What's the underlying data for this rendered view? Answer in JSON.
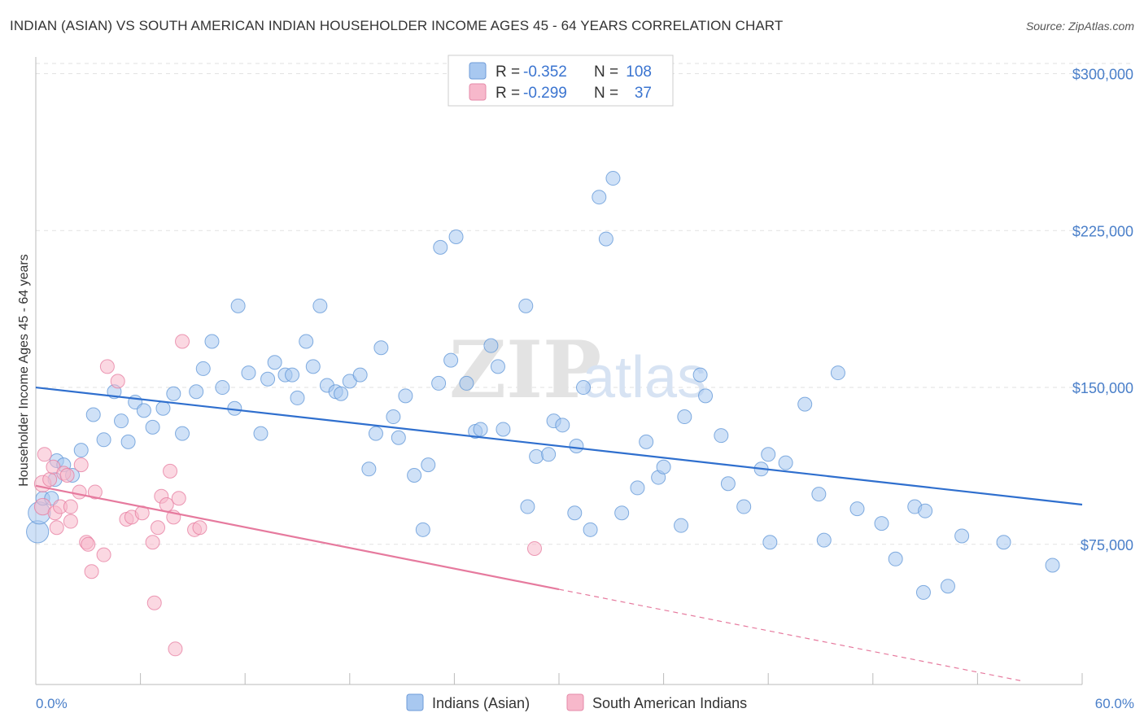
{
  "header": {
    "title": "INDIAN (ASIAN) VS SOUTH AMERICAN INDIAN HOUSEHOLDER INCOME AGES 45 - 64 YEARS CORRELATION CHART",
    "source": "Source: ZipAtlas.com"
  },
  "watermark": {
    "zip": "ZIP",
    "atlas": "atlas"
  },
  "legend": {
    "r_label": "R =",
    "n_label": "N =",
    "items": [
      {
        "r": "-0.352",
        "n": "108",
        "color": "#a8c8f0"
      },
      {
        "r": "-0.299",
        "n": "37",
        "color": "#f7b8cb"
      }
    ]
  },
  "bottom_legend": [
    {
      "label": "Indians (Asian)",
      "color": "#a8c8f0"
    },
    {
      "label": "South American Indians",
      "color": "#f7b8cb"
    }
  ],
  "chart_data": {
    "type": "scatter",
    "title": "INDIAN (ASIAN) VS SOUTH AMERICAN INDIAN HOUSEHOLDER INCOME AGES 45 - 64 YEARS CORRELATION CHART",
    "xlabel": "",
    "ylabel": "Householder Income Ages 45 - 64 years",
    "xlim": [
      0,
      60
    ],
    "ylim": [
      8000,
      308000
    ],
    "x_tick_labels": [
      "0.0%",
      "60.0%"
    ],
    "y_ticks": [
      75000,
      150000,
      225000,
      300000
    ],
    "y_tick_labels": [
      "$75,000",
      "$150,000",
      "$225,000",
      "$300,000"
    ],
    "grid": true,
    "series": [
      {
        "name": "Indians (Asian)",
        "color": "#5b93d6",
        "fill": "#a8c8f0",
        "r": -0.352,
        "n": 108,
        "trend": {
          "x": [
            0,
            60
          ],
          "y": [
            150000,
            94000
          ],
          "dashed_from": null
        },
        "points": [
          [
            0.1,
            81000,
            1.6
          ],
          [
            0.2,
            90000,
            1.6
          ],
          [
            0.4,
            97000,
            1.0
          ],
          [
            0.9,
            97000,
            1.0
          ],
          [
            1.1,
            106000,
            1.0
          ],
          [
            1.2,
            115000,
            1.0
          ],
          [
            1.6,
            113000,
            1.0
          ],
          [
            2.1,
            108000,
            1.0
          ],
          [
            2.6,
            120000,
            1.0
          ],
          [
            3.3,
            137000,
            1.0
          ],
          [
            3.9,
            125000,
            1.0
          ],
          [
            4.5,
            148000,
            1.0
          ],
          [
            4.9,
            134000,
            1.0
          ],
          [
            5.3,
            124000,
            1.0
          ],
          [
            5.7,
            143000,
            1.0
          ],
          [
            6.2,
            139000,
            1.0
          ],
          [
            6.7,
            131000,
            1.0
          ],
          [
            7.3,
            140000,
            1.0
          ],
          [
            7.9,
            147000,
            1.0
          ],
          [
            8.4,
            128000,
            1.0
          ],
          [
            9.2,
            148000,
            1.0
          ],
          [
            9.6,
            159000,
            1.0
          ],
          [
            10.1,
            172000,
            1.0
          ],
          [
            10.7,
            150000,
            1.0
          ],
          [
            11.4,
            140000,
            1.0
          ],
          [
            11.6,
            189000,
            1.0
          ],
          [
            12.2,
            157000,
            1.0
          ],
          [
            12.9,
            128000,
            1.0
          ],
          [
            13.3,
            154000,
            1.0
          ],
          [
            13.7,
            162000,
            1.0
          ],
          [
            14.3,
            156000,
            1.0
          ],
          [
            14.7,
            156000,
            1.0
          ],
          [
            15.0,
            145000,
            1.0
          ],
          [
            15.5,
            172000,
            1.0
          ],
          [
            15.9,
            160000,
            1.0
          ],
          [
            16.3,
            189000,
            1.0
          ],
          [
            16.7,
            151000,
            1.0
          ],
          [
            17.2,
            148000,
            1.0
          ],
          [
            17.5,
            147000,
            1.0
          ],
          [
            18.0,
            153000,
            1.0
          ],
          [
            18.6,
            156000,
            1.0
          ],
          [
            19.1,
            111000,
            1.0
          ],
          [
            19.5,
            128000,
            1.0
          ],
          [
            19.8,
            169000,
            1.0
          ],
          [
            20.5,
            136000,
            1.0
          ],
          [
            20.8,
            126000,
            1.0
          ],
          [
            21.2,
            146000,
            1.0
          ],
          [
            21.7,
            108000,
            1.0
          ],
          [
            22.2,
            82000,
            1.0
          ],
          [
            22.5,
            113000,
            1.0
          ],
          [
            23.1,
            152000,
            1.0
          ],
          [
            23.2,
            217000,
            1.0
          ],
          [
            23.8,
            163000,
            1.0
          ],
          [
            24.1,
            222000,
            1.0
          ],
          [
            24.7,
            152000,
            1.0
          ],
          [
            25.2,
            129000,
            1.0
          ],
          [
            25.5,
            130000,
            1.0
          ],
          [
            26.1,
            170000,
            1.0
          ],
          [
            26.5,
            160000,
            1.0
          ],
          [
            26.8,
            130000,
            1.0
          ],
          [
            28.1,
            189000,
            1.0
          ],
          [
            28.2,
            93000,
            1.0
          ],
          [
            28.7,
            117000,
            1.0
          ],
          [
            29.4,
            118000,
            1.0
          ],
          [
            29.7,
            134000,
            1.0
          ],
          [
            30.2,
            132000,
            1.0
          ],
          [
            30.9,
            90000,
            1.0
          ],
          [
            31.0,
            122000,
            1.0
          ],
          [
            31.4,
            150000,
            1.0
          ],
          [
            31.8,
            82000,
            1.0
          ],
          [
            32.3,
            241000,
            1.0
          ],
          [
            32.7,
            221000,
            1.0
          ],
          [
            33.1,
            250000,
            1.0
          ],
          [
            33.6,
            90000,
            1.0
          ],
          [
            34.5,
            102000,
            1.0
          ],
          [
            35.0,
            124000,
            1.0
          ],
          [
            35.7,
            107000,
            1.0
          ],
          [
            36.0,
            112000,
            1.0
          ],
          [
            37.0,
            84000,
            1.0
          ],
          [
            37.2,
            136000,
            1.0
          ],
          [
            38.1,
            156000,
            1.0
          ],
          [
            38.4,
            146000,
            1.0
          ],
          [
            39.3,
            127000,
            1.0
          ],
          [
            39.7,
            104000,
            1.0
          ],
          [
            40.6,
            93000,
            1.0
          ],
          [
            41.6,
            111000,
            1.0
          ],
          [
            42.0,
            118000,
            1.0
          ],
          [
            42.1,
            76000,
            1.0
          ],
          [
            43.0,
            114000,
            1.0
          ],
          [
            44.1,
            142000,
            1.0
          ],
          [
            44.9,
            99000,
            1.0
          ],
          [
            45.2,
            77000,
            1.0
          ],
          [
            46.0,
            157000,
            1.0
          ],
          [
            47.1,
            92000,
            1.0
          ],
          [
            48.5,
            85000,
            1.0
          ],
          [
            49.3,
            68000,
            1.0
          ],
          [
            50.4,
            93000,
            1.0
          ],
          [
            50.9,
            52000,
            1.0
          ],
          [
            51.0,
            91000,
            1.0
          ],
          [
            52.3,
            55000,
            1.0
          ],
          [
            53.1,
            79000,
            1.0
          ],
          [
            55.5,
            76000,
            1.0
          ],
          [
            58.3,
            65000,
            1.0
          ]
        ]
      },
      {
        "name": "South American Indians",
        "color": "#e67a9e",
        "fill": "#f7b8cb",
        "r": -0.299,
        "n": 37,
        "trend": {
          "x": [
            0,
            60
          ],
          "y": [
            103000,
            4000
          ],
          "dashed_from": 30
        },
        "points": [
          [
            0.4,
            104000,
            1.2
          ],
          [
            0.4,
            93000,
            1.2
          ],
          [
            0.5,
            118000,
            1.0
          ],
          [
            0.8,
            106000,
            1.0
          ],
          [
            1.0,
            112000,
            1.0
          ],
          [
            1.1,
            90000,
            1.0
          ],
          [
            1.2,
            83000,
            1.0
          ],
          [
            1.4,
            93000,
            1.0
          ],
          [
            1.6,
            109000,
            1.0
          ],
          [
            1.8,
            108000,
            1.0
          ],
          [
            2.0,
            93000,
            1.0
          ],
          [
            2.0,
            86000,
            1.0
          ],
          [
            2.5,
            100000,
            1.0
          ],
          [
            2.6,
            113000,
            1.0
          ],
          [
            2.9,
            76000,
            1.0
          ],
          [
            3.0,
            75000,
            1.0
          ],
          [
            3.2,
            62000,
            1.0
          ],
          [
            3.4,
            100000,
            1.0
          ],
          [
            3.9,
            70000,
            1.0
          ],
          [
            4.1,
            160000,
            1.0
          ],
          [
            4.7,
            153000,
            1.0
          ],
          [
            5.2,
            87000,
            1.0
          ],
          [
            5.5,
            88000,
            1.0
          ],
          [
            6.1,
            90000,
            1.0
          ],
          [
            6.7,
            76000,
            1.0
          ],
          [
            6.8,
            47000,
            1.0
          ],
          [
            7.0,
            83000,
            1.0
          ],
          [
            7.2,
            98000,
            1.0
          ],
          [
            7.5,
            94000,
            1.0
          ],
          [
            7.7,
            110000,
            1.0
          ],
          [
            7.9,
            88000,
            1.0
          ],
          [
            8.0,
            25000,
            1.0
          ],
          [
            8.2,
            97000,
            1.0
          ],
          [
            8.4,
            172000,
            1.0
          ],
          [
            9.1,
            82000,
            1.0
          ],
          [
            9.4,
            83000,
            1.0
          ],
          [
            28.6,
            73000,
            1.0
          ]
        ]
      }
    ]
  }
}
